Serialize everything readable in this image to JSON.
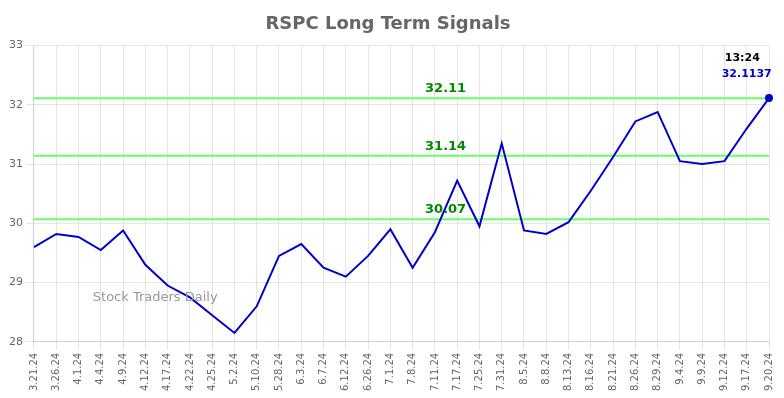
{
  "chart_data": {
    "type": "line",
    "title": "RSPC Long Term Signals",
    "categories": [
      "3.21.24",
      "3.26.24",
      "4.1.24",
      "4.4.24",
      "4.9.24",
      "4.12.24",
      "4.17.24",
      "4.22.24",
      "4.25.24",
      "5.2.24",
      "5.10.24",
      "5.28.24",
      "6.3.24",
      "6.7.24",
      "6.12.24",
      "6.26.24",
      "7.1.24",
      "7.8.24",
      "7.11.24",
      "7.17.24",
      "7.25.24",
      "7.31.24",
      "8.5.24",
      "8.8.24",
      "8.13.24",
      "8.16.24",
      "8.21.24",
      "8.26.24",
      "8.29.24",
      "9.4.24",
      "9.9.24",
      "9.12.24",
      "9.17.24",
      "9.20.24"
    ],
    "values": [
      29.6,
      29.82,
      29.77,
      29.55,
      29.88,
      29.3,
      28.95,
      28.75,
      28.45,
      28.15,
      28.6,
      29.45,
      29.65,
      29.25,
      29.1,
      29.45,
      29.9,
      29.25,
      29.85,
      30.72,
      29.95,
      31.35,
      29.88,
      29.82,
      30.02,
      30.55,
      31.12,
      31.72,
      31.88,
      31.05,
      31.0,
      31.05,
      31.6,
      32.1137
    ],
    "color": "#0000cc",
    "ylim": [
      28,
      33
    ],
    "yticks": [
      28,
      29,
      30,
      31,
      32,
      33
    ],
    "grid": true,
    "hlines": [
      {
        "value": 30.07,
        "label": "30.07",
        "color": "#66ff66",
        "label_color": "#008800"
      },
      {
        "value": 31.14,
        "label": "31.14",
        "color": "#66ff66",
        "label_color": "#008800"
      },
      {
        "value": 32.11,
        "label": "32.11",
        "color": "#66ff66",
        "label_color": "#008800"
      }
    ],
    "annotations": [
      {
        "text": "13:24",
        "x": "9.20.24",
        "y": 32.1137,
        "color": "#000000"
      },
      {
        "text": "32.1137",
        "x": "9.20.24",
        "y": 32.1137,
        "color": "#0000cc"
      },
      {
        "text": "Stock Traders Daily",
        "color": "#999999"
      }
    ]
  }
}
